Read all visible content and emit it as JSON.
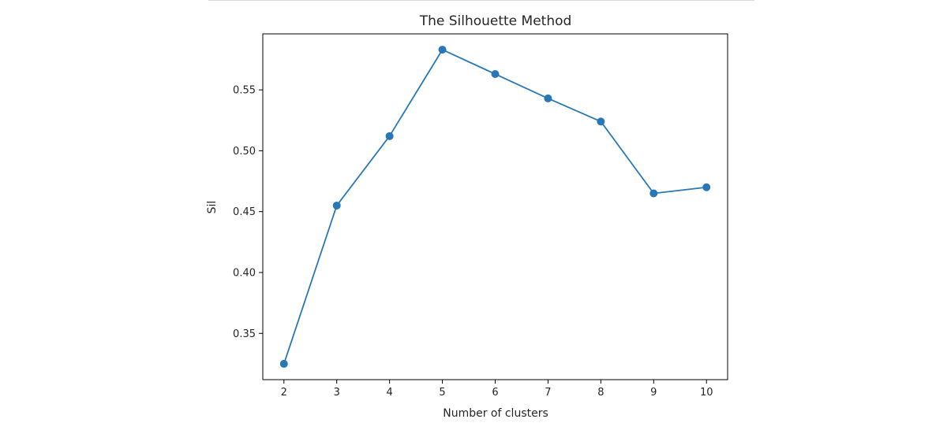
{
  "chart_data": {
    "type": "line",
    "title": "The Silhouette Method",
    "xlabel": "Number of clusters",
    "ylabel": "Sil",
    "x": [
      2,
      3,
      4,
      5,
      6,
      7,
      8,
      9,
      10
    ],
    "series": [
      {
        "values": [
          0.325,
          0.455,
          0.512,
          0.583,
          0.563,
          0.543,
          0.524,
          0.465,
          0.47
        ],
        "color": "#2878b5",
        "marker": "circle"
      }
    ],
    "xticks": [
      "2",
      "3",
      "4",
      "5",
      "6",
      "7",
      "8",
      "9",
      "10"
    ],
    "yticks": [
      {
        "value": 0.35,
        "label": "0.35"
      },
      {
        "value": 0.4,
        "label": "0.40"
      },
      {
        "value": 0.45,
        "label": "0.45"
      },
      {
        "value": 0.5,
        "label": "0.50"
      },
      {
        "value": 0.55,
        "label": "0.55"
      }
    ],
    "xlim": [
      1.6,
      10.4
    ],
    "ylim": [
      0.312,
      0.596
    ],
    "grid": false,
    "legend": "none"
  }
}
